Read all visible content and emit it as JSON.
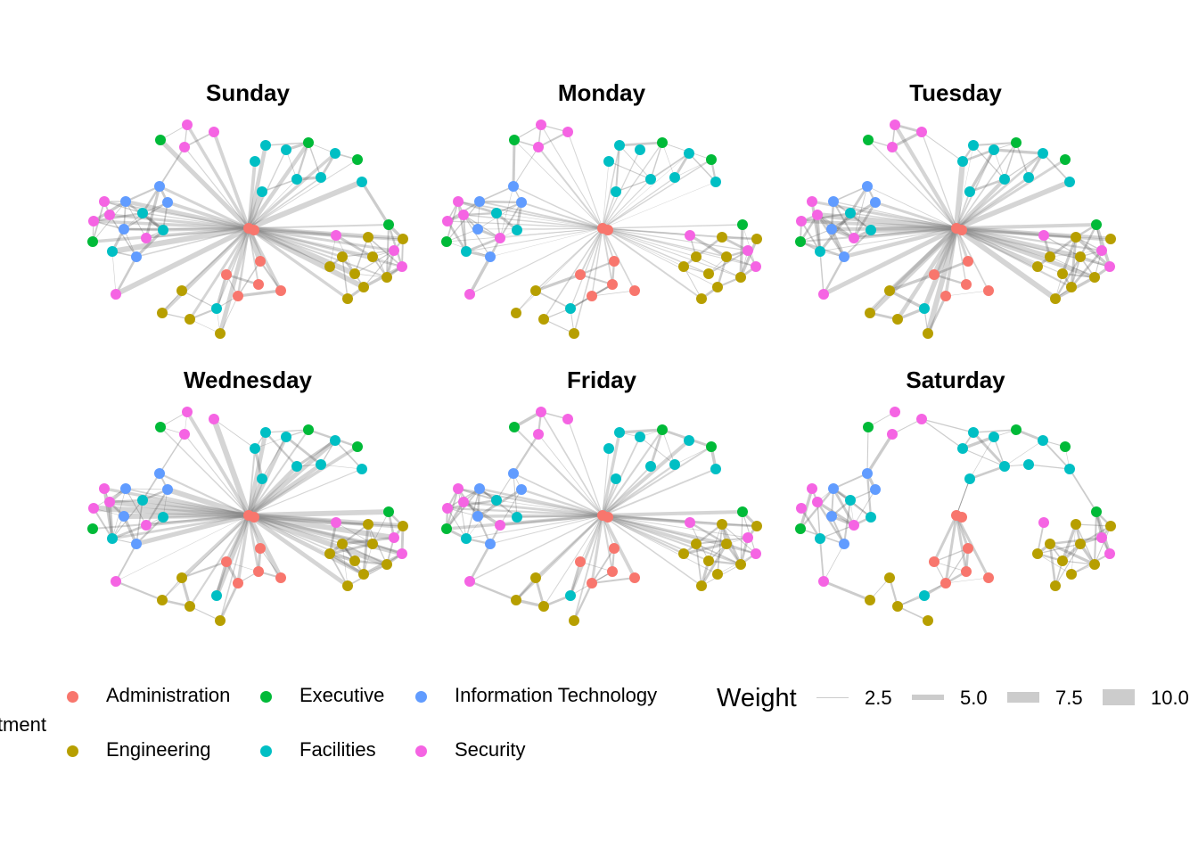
{
  "panels": [
    {
      "title": "Sunday"
    },
    {
      "title": "Monday"
    },
    {
      "title": "Tuesday"
    },
    {
      "title": "Wednesday"
    },
    {
      "title": "Friday"
    },
    {
      "title": "Saturday"
    }
  ],
  "legend": {
    "department_title": "Department",
    "departments": [
      {
        "label": "Administration",
        "color": "#F8766D"
      },
      {
        "label": "Executive",
        "color": "#00BA38"
      },
      {
        "label": "Information Technology",
        "color": "#619CFF"
      },
      {
        "label": "Engineering",
        "color": "#B79F00"
      },
      {
        "label": "Facilities",
        "color": "#00BFC4"
      },
      {
        "label": "Security",
        "color": "#F564E3"
      }
    ],
    "weight_title": "Weight",
    "weights": [
      "2.5",
      "5.0",
      "7.5",
      "10.0"
    ],
    "edge_color": "#cccccc"
  }
}
